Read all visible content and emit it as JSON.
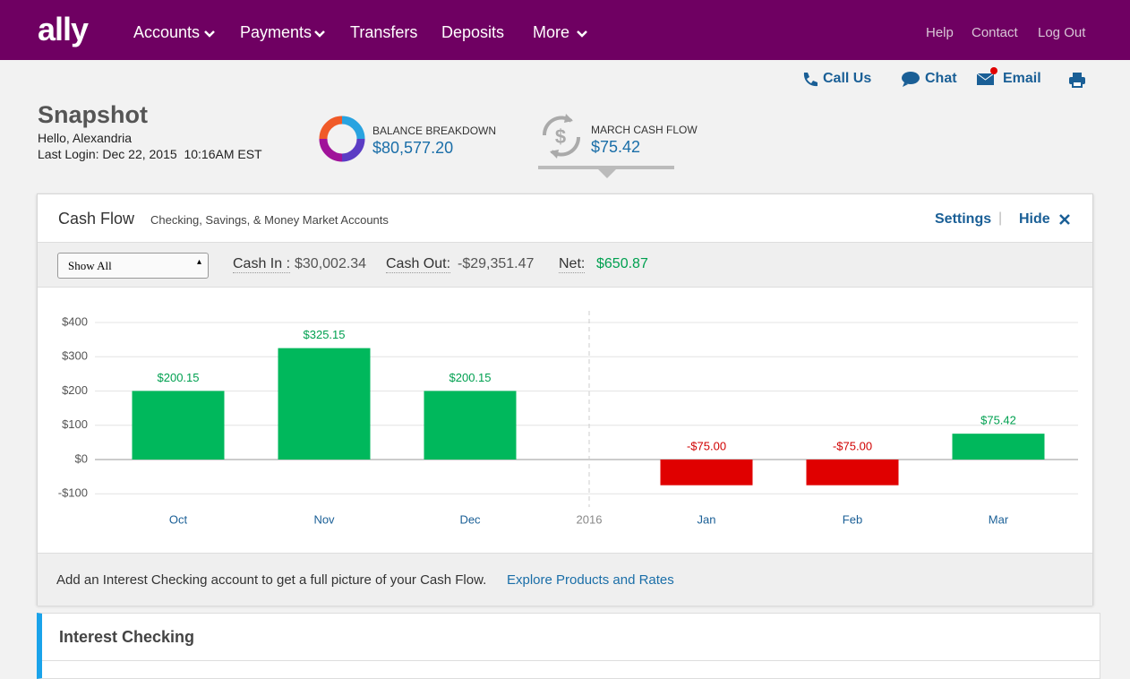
{
  "nav": {
    "logo": "ally",
    "items": [
      "Accounts",
      "Payments",
      "Transfers",
      "Deposits",
      "More"
    ],
    "links": [
      "Help",
      "Contact",
      "Log Out"
    ]
  },
  "toolbar": [
    "Call Us",
    "Chat",
    "Email"
  ],
  "snapshot": {
    "title": "Snapshot",
    "greeting": "Hello, Alexandria",
    "last_login": "Last Login: Dec 22, 2015  10:16AM EST"
  },
  "balance": {
    "label": "BALANCE BREAKDOWN",
    "value": "$80,577.20"
  },
  "cash_flow_tab": {
    "label": "MARCH CASH FLOW",
    "value": "$75.42"
  },
  "panel": {
    "title": "Cash Flow",
    "subtitle": "Checking, Savings, & Money Market Accounts",
    "settings": "Settings",
    "hide": "Hide",
    "filter": "Show All",
    "cash_in_label": "Cash In :",
    "cash_in": "$30,002.34",
    "cash_out_label": "Cash Out:",
    "cash_out": "-$29,351.47",
    "net_label": "Net:",
    "net": "$650.87",
    "footer_text": "Add an Interest Checking account to get a full picture of your Cash Flow.",
    "footer_link": "Explore Products and Rates"
  },
  "account": {
    "title": "Interest Checking"
  },
  "chart_data": {
    "type": "bar",
    "categories": [
      "Oct",
      "Nov",
      "Dec",
      "Jan",
      "Feb",
      "Mar"
    ],
    "values": [
      200.15,
      325.15,
      200.15,
      -75,
      -75,
      75.42
    ],
    "value_labels": [
      "$200.15",
      "$325.15",
      "$200.15",
      "-$75.00",
      "-$75.00",
      "$75.42"
    ],
    "colors": [
      "#00b85c",
      "#00b85c",
      "#00b85c",
      "#e00000",
      "#e00000",
      "#00b85c"
    ],
    "divider_label": "2016",
    "ylim": [
      -100,
      400
    ],
    "yticks": [
      {
        "value": -100,
        "label": "-$100"
      },
      {
        "value": 0,
        "label": "$0"
      },
      {
        "value": 100,
        "label": "$100"
      },
      {
        "value": 200,
        "label": "$200"
      },
      {
        "value": 300,
        "label": "$300"
      },
      {
        "value": 400,
        "label": "$400"
      }
    ],
    "grid": true
  }
}
